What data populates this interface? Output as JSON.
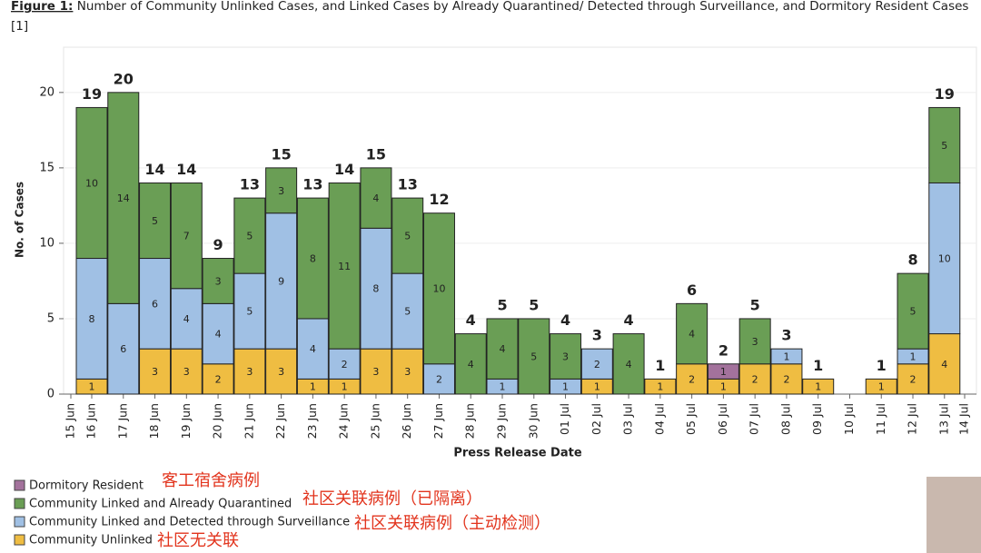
{
  "chart_data": {
    "type": "stacked_bar",
    "title_prefix": "Figure 1:",
    "title": "Number of Community Unlinked Cases, and Linked Cases by Already Quarantined/ Detected through Surveillance, and Dormitory Resident Cases",
    "subtitle": "[1]",
    "x_label": "Press Release Date",
    "y_label": "No. of Cases",
    "categories": [
      "15 Jun",
      "16 Jun",
      "17 Jun",
      "18 Jun",
      "19 Jun",
      "20 Jun",
      "21 Jun",
      "22 Jun",
      "23 Jun",
      "24 Jun",
      "25 Jun",
      "26 Jun",
      "27 Jun",
      "28 Jun",
      "29 Jun",
      "30 Jun",
      "01 Jul",
      "02 Jul",
      "03 Jul",
      "04 Jul",
      "05 Jul",
      "06 Jul",
      "07 Jul",
      "08 Jul",
      "09 Jul",
      "10 Jul",
      "11 Jul",
      "12 Jul",
      "13 Jul",
      "14 Jul"
    ],
    "series": [
      {
        "name": "Dormitory Resident",
        "color": "#a3729c",
        "values": [
          null,
          0,
          0,
          0,
          0,
          0,
          0,
          0,
          0,
          0,
          0,
          0,
          0,
          0,
          0,
          0,
          0,
          0,
          0,
          0,
          0,
          1,
          0,
          0,
          0,
          null,
          0,
          0,
          0,
          null
        ]
      },
      {
        "name": "Community Linked and Already Quarantined",
        "color": "#6a9e55",
        "values": [
          null,
          10,
          14,
          5,
          7,
          3,
          5,
          3,
          8,
          11,
          4,
          5,
          10,
          4,
          4,
          5,
          3,
          0,
          4,
          0,
          4,
          0,
          3,
          0,
          0,
          null,
          0,
          5,
          5,
          null
        ]
      },
      {
        "name": "Community Linked and Detected through Surveillance",
        "color": "#a0c0e4",
        "values": [
          null,
          8,
          6,
          6,
          4,
          4,
          5,
          9,
          4,
          2,
          8,
          5,
          2,
          0,
          1,
          0,
          1,
          2,
          0,
          0,
          0,
          0,
          0,
          1,
          0,
          null,
          0,
          1,
          10,
          null
        ]
      },
      {
        "name": "Community Unlinked",
        "color": "#efbd42",
        "values": [
          null,
          1,
          0,
          3,
          3,
          2,
          3,
          3,
          1,
          1,
          3,
          3,
          0,
          0,
          0,
          0,
          0,
          1,
          0,
          1,
          2,
          1,
          2,
          2,
          1,
          null,
          1,
          2,
          4,
          null
        ]
      }
    ],
    "totals": [
      null,
      19,
      20,
      14,
      14,
      9,
      13,
      15,
      13,
      14,
      15,
      13,
      12,
      4,
      5,
      5,
      4,
      3,
      4,
      1,
      6,
      2,
      5,
      3,
      1,
      null,
      1,
      8,
      19,
      null
    ],
    "annotations": [
      "客工宿舍病例",
      "社区关联病例（已隔离）",
      "社区关联病例（主动检测）",
      "社区无关联"
    ],
    "ylim": [
      0,
      23
    ],
    "yticks": [
      0,
      5,
      10,
      15,
      20
    ],
    "grid": true
  }
}
